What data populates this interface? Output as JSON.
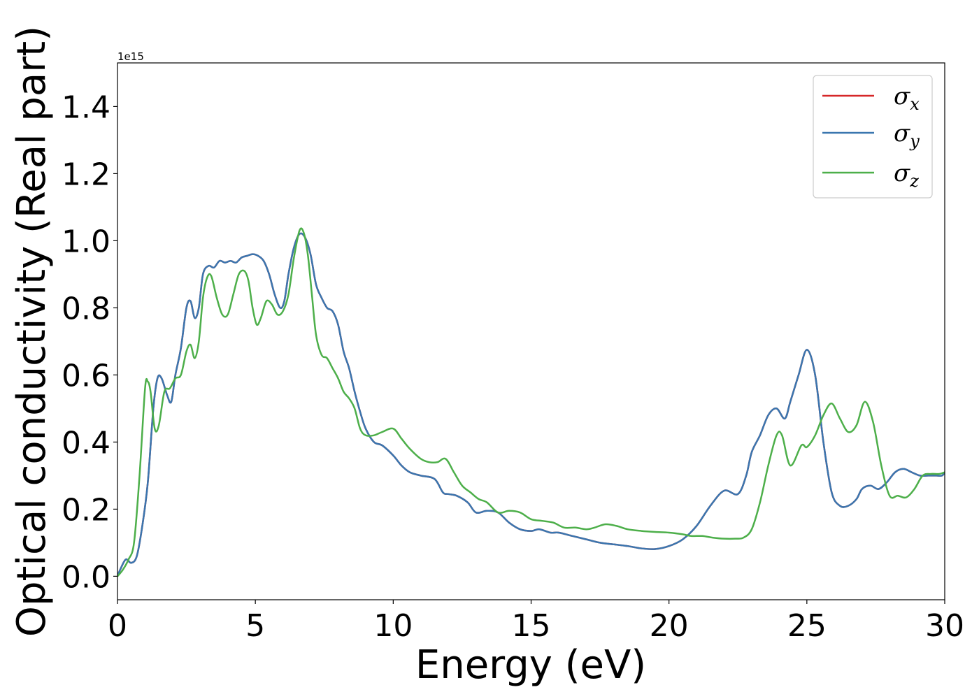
{
  "chart_data": {
    "type": "line",
    "title": "",
    "xlabel": "Energy (eV)",
    "ylabel": "Optical conductivity (Real part)",
    "y_offset_text": "1e15",
    "y_scale_factor": 1000000000000000.0,
    "xlim": [
      0,
      30
    ],
    "ylim": [
      -0.07,
      1.53
    ],
    "xticks": [
      0,
      5,
      10,
      15,
      20,
      25,
      30
    ],
    "xtick_labels": [
      "0",
      "5",
      "10",
      "15",
      "20",
      "25",
      "30"
    ],
    "yticks": [
      0.0,
      0.2,
      0.4,
      0.6,
      0.8,
      1.0,
      1.2,
      1.4
    ],
    "ytick_labels": [
      "0.0",
      "0.2",
      "0.4",
      "0.6",
      "0.8",
      "1.0",
      "1.2",
      "1.4"
    ],
    "grid": false,
    "legend_position": "top-right",
    "series": [
      {
        "name": "σx",
        "label_symbol": "σ",
        "label_sub": "x",
        "color": "#d62728",
        "x": [
          0.0,
          0.1,
          0.3,
          0.5,
          0.7,
          0.9,
          1.1,
          1.3,
          1.45,
          1.6,
          1.8,
          1.95,
          2.1,
          2.3,
          2.5,
          2.65,
          2.8,
          2.95,
          3.1,
          3.3,
          3.5,
          3.7,
          3.9,
          4.1,
          4.3,
          4.5,
          4.7,
          4.9,
          5.1,
          5.3,
          5.5,
          5.7,
          5.9,
          6.05,
          6.2,
          6.4,
          6.6,
          6.8,
          7.0,
          7.2,
          7.4,
          7.6,
          7.8,
          8.0,
          8.2,
          8.4,
          8.6,
          8.8,
          9.0,
          9.3,
          9.6,
          10.0,
          10.3,
          10.6,
          11.0,
          11.5,
          11.8,
          12.0,
          12.3,
          12.7,
          13.0,
          13.4,
          13.8,
          14.2,
          14.6,
          15.0,
          15.3,
          15.7,
          16.0,
          16.5,
          17.0,
          17.5,
          18.0,
          18.5,
          19.0,
          19.5,
          20.0,
          20.5,
          21.0,
          21.5,
          22.0,
          22.5,
          22.8,
          23.0,
          23.3,
          23.6,
          23.9,
          24.2,
          24.4,
          24.7,
          25.0,
          25.3,
          25.6,
          25.9,
          26.2,
          26.5,
          26.8,
          27.0,
          27.3,
          27.6,
          27.9,
          28.2,
          28.5,
          28.8,
          29.1,
          29.4,
          29.7,
          29.9,
          30.0
        ],
        "values": [
          0.0,
          0.02,
          0.05,
          0.04,
          0.06,
          0.15,
          0.28,
          0.5,
          0.59,
          0.59,
          0.54,
          0.52,
          0.6,
          0.68,
          0.8,
          0.82,
          0.77,
          0.8,
          0.9,
          0.925,
          0.92,
          0.94,
          0.935,
          0.94,
          0.935,
          0.95,
          0.955,
          0.96,
          0.955,
          0.94,
          0.9,
          0.84,
          0.8,
          0.82,
          0.9,
          0.98,
          1.02,
          1.01,
          0.96,
          0.87,
          0.83,
          0.8,
          0.79,
          0.75,
          0.67,
          0.62,
          0.55,
          0.49,
          0.44,
          0.4,
          0.39,
          0.36,
          0.33,
          0.31,
          0.3,
          0.29,
          0.25,
          0.245,
          0.24,
          0.22,
          0.19,
          0.195,
          0.19,
          0.16,
          0.14,
          0.135,
          0.14,
          0.13,
          0.13,
          0.12,
          0.11,
          0.1,
          0.095,
          0.09,
          0.083,
          0.081,
          0.09,
          0.11,
          0.15,
          0.21,
          0.255,
          0.245,
          0.3,
          0.37,
          0.42,
          0.48,
          0.5,
          0.47,
          0.52,
          0.6,
          0.675,
          0.6,
          0.4,
          0.25,
          0.21,
          0.21,
          0.23,
          0.26,
          0.27,
          0.26,
          0.28,
          0.31,
          0.32,
          0.31,
          0.3,
          0.3,
          0.3,
          0.3,
          0.31
        ]
      },
      {
        "name": "σy",
        "label_symbol": "σ",
        "label_sub": "y",
        "color": "#3a76af",
        "x": [
          0.0,
          0.1,
          0.3,
          0.5,
          0.7,
          0.9,
          1.1,
          1.3,
          1.45,
          1.6,
          1.8,
          1.95,
          2.1,
          2.3,
          2.5,
          2.65,
          2.8,
          2.95,
          3.1,
          3.3,
          3.5,
          3.7,
          3.9,
          4.1,
          4.3,
          4.5,
          4.7,
          4.9,
          5.1,
          5.3,
          5.5,
          5.7,
          5.9,
          6.05,
          6.2,
          6.4,
          6.6,
          6.8,
          7.0,
          7.2,
          7.4,
          7.6,
          7.8,
          8.0,
          8.2,
          8.4,
          8.6,
          8.8,
          9.0,
          9.3,
          9.6,
          10.0,
          10.3,
          10.6,
          11.0,
          11.5,
          11.8,
          12.0,
          12.3,
          12.7,
          13.0,
          13.4,
          13.8,
          14.2,
          14.6,
          15.0,
          15.3,
          15.7,
          16.0,
          16.5,
          17.0,
          17.5,
          18.0,
          18.5,
          19.0,
          19.5,
          20.0,
          20.5,
          21.0,
          21.5,
          22.0,
          22.5,
          22.8,
          23.0,
          23.3,
          23.6,
          23.9,
          24.2,
          24.4,
          24.7,
          25.0,
          25.3,
          25.6,
          25.9,
          26.2,
          26.5,
          26.8,
          27.0,
          27.3,
          27.6,
          27.9,
          28.2,
          28.5,
          28.8,
          29.1,
          29.4,
          29.7,
          29.9,
          30.0
        ],
        "values": [
          0.0,
          0.02,
          0.05,
          0.04,
          0.06,
          0.15,
          0.28,
          0.5,
          0.59,
          0.59,
          0.54,
          0.52,
          0.6,
          0.68,
          0.8,
          0.82,
          0.77,
          0.8,
          0.9,
          0.925,
          0.92,
          0.94,
          0.935,
          0.94,
          0.935,
          0.95,
          0.955,
          0.96,
          0.955,
          0.94,
          0.9,
          0.84,
          0.8,
          0.82,
          0.9,
          0.98,
          1.02,
          1.01,
          0.96,
          0.87,
          0.83,
          0.8,
          0.79,
          0.75,
          0.67,
          0.62,
          0.55,
          0.49,
          0.44,
          0.4,
          0.39,
          0.36,
          0.33,
          0.31,
          0.3,
          0.29,
          0.25,
          0.245,
          0.24,
          0.22,
          0.19,
          0.195,
          0.19,
          0.16,
          0.14,
          0.135,
          0.14,
          0.13,
          0.13,
          0.12,
          0.11,
          0.1,
          0.095,
          0.09,
          0.083,
          0.081,
          0.09,
          0.11,
          0.15,
          0.21,
          0.255,
          0.245,
          0.3,
          0.37,
          0.42,
          0.48,
          0.5,
          0.47,
          0.52,
          0.6,
          0.675,
          0.6,
          0.4,
          0.25,
          0.21,
          0.21,
          0.23,
          0.26,
          0.27,
          0.26,
          0.28,
          0.31,
          0.32,
          0.31,
          0.3,
          0.3,
          0.3,
          0.3,
          0.31
        ]
      },
      {
        "name": "σz",
        "label_symbol": "σ",
        "label_sub": "z",
        "color": "#4daf4a",
        "x": [
          0.0,
          0.2,
          0.4,
          0.6,
          0.8,
          1.0,
          1.1,
          1.2,
          1.35,
          1.5,
          1.7,
          1.9,
          2.1,
          2.3,
          2.5,
          2.65,
          2.8,
          2.95,
          3.1,
          3.25,
          3.4,
          3.6,
          3.8,
          4.0,
          4.2,
          4.4,
          4.6,
          4.75,
          4.9,
          5.05,
          5.2,
          5.4,
          5.6,
          5.8,
          6.0,
          6.2,
          6.4,
          6.6,
          6.75,
          6.9,
          7.05,
          7.2,
          7.4,
          7.6,
          7.8,
          8.0,
          8.2,
          8.4,
          8.6,
          8.8,
          9.0,
          9.3,
          9.6,
          10.0,
          10.3,
          10.6,
          11.0,
          11.3,
          11.6,
          11.9,
          12.2,
          12.5,
          12.8,
          13.1,
          13.4,
          13.8,
          14.2,
          14.6,
          15.0,
          15.4,
          15.8,
          16.2,
          16.6,
          17.0,
          17.3,
          17.7,
          18.1,
          18.5,
          19.0,
          19.5,
          20.0,
          20.5,
          20.8,
          21.2,
          21.6,
          22.0,
          22.4,
          22.7,
          23.0,
          23.3,
          23.6,
          23.9,
          24.1,
          24.4,
          24.8,
          25.0,
          25.3,
          25.6,
          25.9,
          26.2,
          26.5,
          26.8,
          27.1,
          27.4,
          27.7,
          28.0,
          28.3,
          28.6,
          28.9,
          29.2,
          29.5,
          29.8,
          30.0
        ],
        "values": [
          0.0,
          0.02,
          0.05,
          0.1,
          0.3,
          0.56,
          0.58,
          0.55,
          0.44,
          0.45,
          0.55,
          0.56,
          0.59,
          0.6,
          0.67,
          0.69,
          0.65,
          0.7,
          0.83,
          0.89,
          0.895,
          0.83,
          0.78,
          0.78,
          0.84,
          0.9,
          0.91,
          0.88,
          0.8,
          0.75,
          0.77,
          0.82,
          0.81,
          0.78,
          0.79,
          0.84,
          0.95,
          1.03,
          1.025,
          0.96,
          0.84,
          0.72,
          0.66,
          0.65,
          0.62,
          0.59,
          0.55,
          0.53,
          0.5,
          0.44,
          0.42,
          0.42,
          0.43,
          0.44,
          0.41,
          0.38,
          0.35,
          0.34,
          0.34,
          0.35,
          0.31,
          0.27,
          0.25,
          0.23,
          0.22,
          0.19,
          0.195,
          0.19,
          0.17,
          0.165,
          0.16,
          0.145,
          0.145,
          0.14,
          0.145,
          0.155,
          0.15,
          0.14,
          0.135,
          0.132,
          0.13,
          0.125,
          0.12,
          0.12,
          0.115,
          0.112,
          0.112,
          0.115,
          0.14,
          0.22,
          0.33,
          0.42,
          0.42,
          0.33,
          0.39,
          0.385,
          0.42,
          0.48,
          0.515,
          0.47,
          0.43,
          0.45,
          0.52,
          0.46,
          0.33,
          0.24,
          0.24,
          0.235,
          0.26,
          0.3,
          0.305,
          0.305,
          0.31
        ]
      }
    ]
  }
}
